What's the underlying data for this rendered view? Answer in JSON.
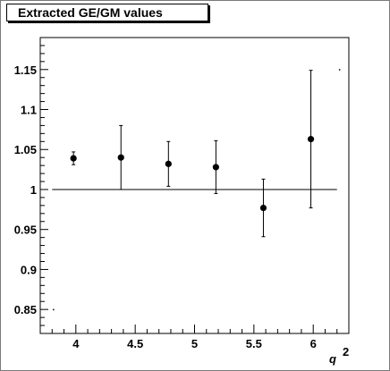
{
  "chart_data": {
    "type": "scatter",
    "title": "Extracted GE/GM values",
    "xlabel": "q",
    "xlabel_superscript": "2",
    "ylabel": "",
    "xlim": [
      3.7,
      6.3
    ],
    "ylim": [
      0.82,
      1.19
    ],
    "x_ticks": [
      4,
      4.5,
      5,
      5.5,
      6
    ],
    "x_tick_labels": [
      "4",
      "4.5",
      "5",
      "5.5",
      "6"
    ],
    "y_ticks": [
      0.85,
      0.9,
      0.95,
      1,
      1.05,
      1.1,
      1.15
    ],
    "y_tick_labels": [
      "0.85",
      "0.9",
      "0.95",
      "1",
      "1.05",
      "1.1",
      "1.15"
    ],
    "reference_line": {
      "y": 1,
      "x_from": 3.8,
      "x_to": 6.2
    },
    "series": [
      {
        "points": [
          {
            "x": 3.98,
            "y": 1.039,
            "err_low": 0.008,
            "err_high": 0.008
          },
          {
            "x": 4.38,
            "y": 1.04,
            "err_low": 0.04,
            "err_high": 0.04
          },
          {
            "x": 4.78,
            "y": 1.032,
            "err_low": 0.028,
            "err_high": 0.028
          },
          {
            "x": 5.18,
            "y": 1.028,
            "err_low": 0.033,
            "err_high": 0.033
          },
          {
            "x": 5.58,
            "y": 0.977,
            "err_low": 0.036,
            "err_high": 0.036
          },
          {
            "x": 5.98,
            "y": 1.063,
            "err_low": 0.086,
            "err_high": 0.086
          }
        ]
      }
    ],
    "stray_points": [
      {
        "x": 3.81,
        "y": 0.85
      },
      {
        "x": 6.22,
        "y": 1.15
      }
    ],
    "colors": {
      "marker": "#000000",
      "axis": "#000000",
      "frame": "#7a7a7a"
    }
  }
}
